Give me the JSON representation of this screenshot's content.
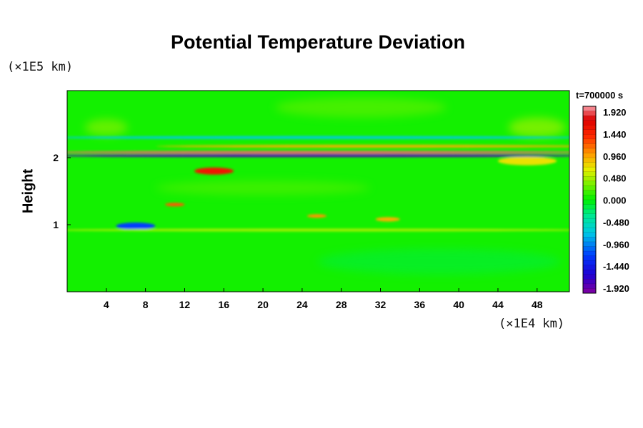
{
  "chart_data": {
    "type": "heatmap",
    "title": "Potential Temperature Deviation",
    "xlabel": "",
    "ylabel": "Height",
    "x_unit": "(×1E4 km)",
    "y_unit": "(×1E5 km)",
    "time_label": "t=700000 s",
    "xlim": [
      0,
      51.3
    ],
    "ylim": [
      0,
      3.0
    ],
    "x_ticks": [
      4,
      8,
      12,
      16,
      20,
      24,
      28,
      32,
      36,
      40,
      44,
      48
    ],
    "y_ticks": [
      1,
      2
    ],
    "colorbar": {
      "levels": [
        "1.920",
        "1.440",
        "0.960",
        "0.480",
        "0.000",
        "-0.480",
        "-0.960",
        "-1.440",
        "-1.920"
      ],
      "min": -2.0,
      "max": 2.0
    },
    "background_value": 0.05,
    "features": [
      {
        "desc": "strong alternating band",
        "x0": 0,
        "x1": 51.3,
        "y": 2.08,
        "value": 1.9
      },
      {
        "desc": "negative band",
        "x0": 0,
        "x1": 51.3,
        "y": 2.03,
        "value": -1.8
      },
      {
        "desc": "positive band upper",
        "x0": 12,
        "x1": 51.3,
        "y": 2.17,
        "value": 0.9
      },
      {
        "desc": "cyan upper band",
        "x0": 0,
        "x1": 51.3,
        "y": 2.3,
        "value": -0.7
      },
      {
        "desc": "warm blob",
        "x0": 13,
        "x1": 17,
        "y": 1.8,
        "value": 1.5
      },
      {
        "desc": "warm spot",
        "x0": 10,
        "x1": 12,
        "y": 1.3,
        "value": 1.2
      },
      {
        "desc": "blue streak",
        "x0": 5,
        "x1": 9,
        "y": 0.98,
        "value": -1.2
      },
      {
        "desc": "warm spot",
        "x0": 24.5,
        "x1": 26.5,
        "y": 1.13,
        "value": 1.0
      },
      {
        "desc": "warm spot",
        "x0": 31.5,
        "x1": 34,
        "y": 1.08,
        "value": 0.9
      },
      {
        "desc": "yellow band",
        "x0": 0,
        "x1": 51.3,
        "y": 0.92,
        "value": 0.45
      },
      {
        "desc": "yellow right patch",
        "x0": 44,
        "x1": 50,
        "y": 1.95,
        "value": 0.7
      }
    ]
  }
}
